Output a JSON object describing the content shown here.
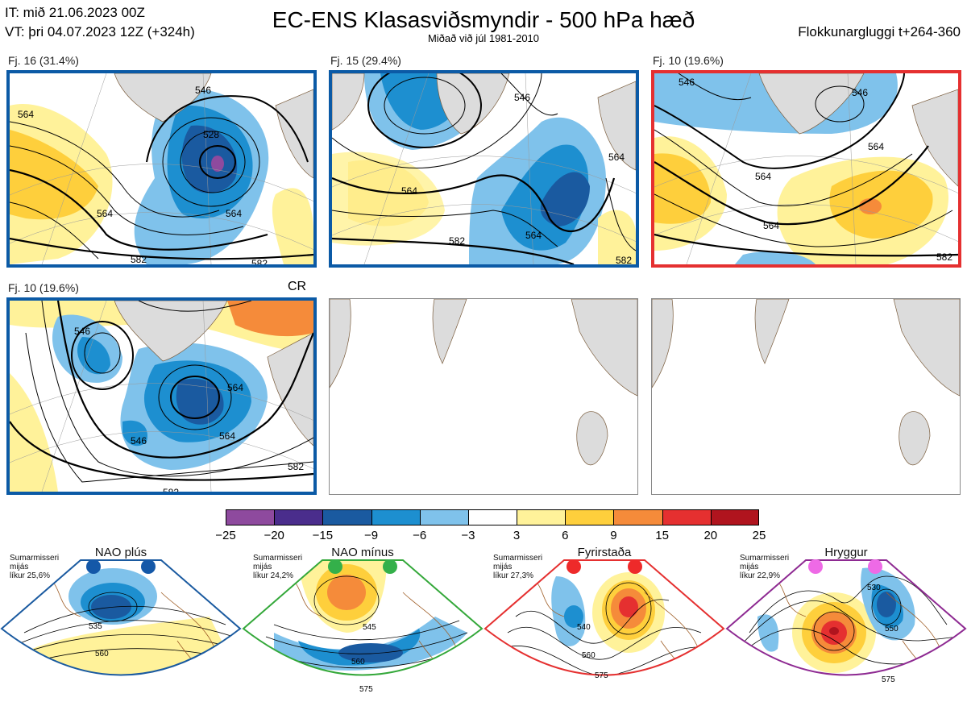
{
  "header": {
    "issue_time": "IT: mið 21.06.2023 00Z",
    "valid_time": "VT: þri 04.07.2023 12Z  (+324h)",
    "title": "EC-ENS Klasasviðsmyndir - 500 hPa hæð",
    "subtitle": "Miðað við júl 1981-2010",
    "window": "Flokkunargluggi t+264-360"
  },
  "panels": [
    {
      "label": "Fj. 16 (31.4%)",
      "contours": [
        "546",
        "528",
        "564",
        "564",
        "582",
        "582",
        "564"
      ]
    },
    {
      "label": "Fj. 15 (29.4%)",
      "contours": [
        "546",
        "564",
        "564",
        "582",
        "564",
        "582"
      ]
    },
    {
      "label": "Fj. 10 (19.6%)",
      "contours": [
        "546",
        "546",
        "564",
        "564",
        "564",
        "582"
      ]
    },
    {
      "label": "Fj. 10 (19.6%)",
      "tag": "CR",
      "contours": [
        "546",
        "546",
        "564",
        "564",
        "582",
        "582"
      ]
    }
  ],
  "colorbar": {
    "ticks": [
      "−25",
      "−20",
      "−15",
      "−9",
      "−6",
      "−3",
      "3",
      "6",
      "9",
      "15",
      "20",
      "25"
    ],
    "colors": [
      "#8e4a9e",
      "#4a2d8c",
      "#1a5aa0",
      "#1d8fd0",
      "#7fc2eb",
      "#ffffff",
      "#fff29a",
      "#fecf3c",
      "#f58b3a",
      "#e53030",
      "#b0141e"
    ]
  },
  "regimes": [
    {
      "title": "NAO plús",
      "season": "Sumarmisseri",
      "mode": "mijás",
      "prob": "líkur 25,6%",
      "contours": [
        "535",
        "560"
      ],
      "color": "#1a5aa0",
      "dot": "#1458a8"
    },
    {
      "title": "NAO mínus",
      "season": "Sumarmisseri",
      "mode": "mijás",
      "prob": "líkur 24,2%",
      "contours": [
        "545",
        "560",
        "575"
      ],
      "color": "#34a83a",
      "dot": "#34b04a"
    },
    {
      "title": "Fyrirstaða",
      "season": "Sumarmisseri",
      "mode": "mijás",
      "prob": "líkur 27,3%",
      "contours": [
        "540",
        "560",
        "575"
      ],
      "color": "#e53030",
      "dot": "#ee2a2a"
    },
    {
      "title": "Hryggur",
      "season": "Sumarmisseri",
      "mode": "mijás",
      "prob": "líkur 22,9%",
      "contours": [
        "530",
        "550",
        "575"
      ],
      "color": "#8e2a92",
      "dot": "#ee6ae6"
    }
  ]
}
